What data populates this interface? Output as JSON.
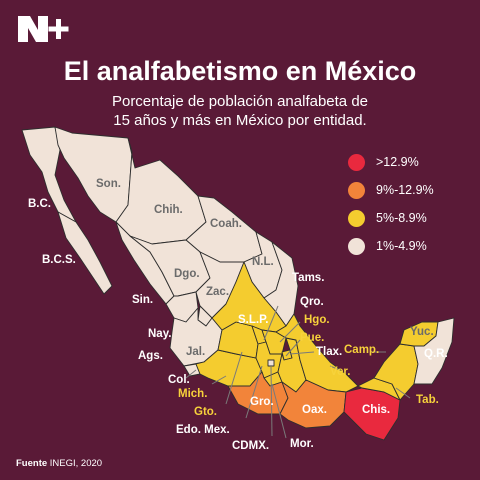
{
  "title": "El analfabetismo en México",
  "subtitle_line1": "Porcentaje de población analfabeta de",
  "subtitle_line2": "15 años y más en México por entidad.",
  "colors": {
    "background": "#5a1a37",
    "very_high": "#e9293e",
    "high": "#f2843a",
    "medium": "#f4cc2f",
    "low": "#f1e3d8"
  },
  "legend": [
    {
      "label": ">12.9%",
      "color": "#e9293e"
    },
    {
      "label": "9%-12.9%",
      "color": "#f2843a"
    },
    {
      "label": "5%-8.9%",
      "color": "#f4cc2f"
    },
    {
      "label": "1%-4.9%",
      "color": "#f1e3d8"
    }
  ],
  "states": {
    "bc": "B.C.",
    "bcs": "B.C.S.",
    "son": "Son.",
    "chih": "Chih.",
    "coah": "Coah.",
    "nl": "N.L.",
    "tams": "Tams.",
    "sin": "Sin.",
    "dgo": "Dgo.",
    "zac": "Zac.",
    "slp": "S.L.P.",
    "qro": "Qro.",
    "hgo": "Hgo.",
    "pue": "Pue.",
    "tlax": "Tlax.",
    "nay": "Nay.",
    "ags": "Ags.",
    "jal": "Jal.",
    "col": "Col.",
    "mich": "Mich.",
    "gto": "Gto.",
    "edomex": "Edo. Mex.",
    "gro": "Gro.",
    "cdmx": "CDMX.",
    "mor": "Mor.",
    "oax": "Oax.",
    "ver": "Ver.",
    "chis": "Chis.",
    "tab": "Tab.",
    "camp": "Camp.",
    "yuc": "Yuc.",
    "qr": "Q.R."
  },
  "source_label": "Fuente",
  "source_text": " INEGI, 2020",
  "icons": {
    "logo": "n-plus-logo"
  }
}
